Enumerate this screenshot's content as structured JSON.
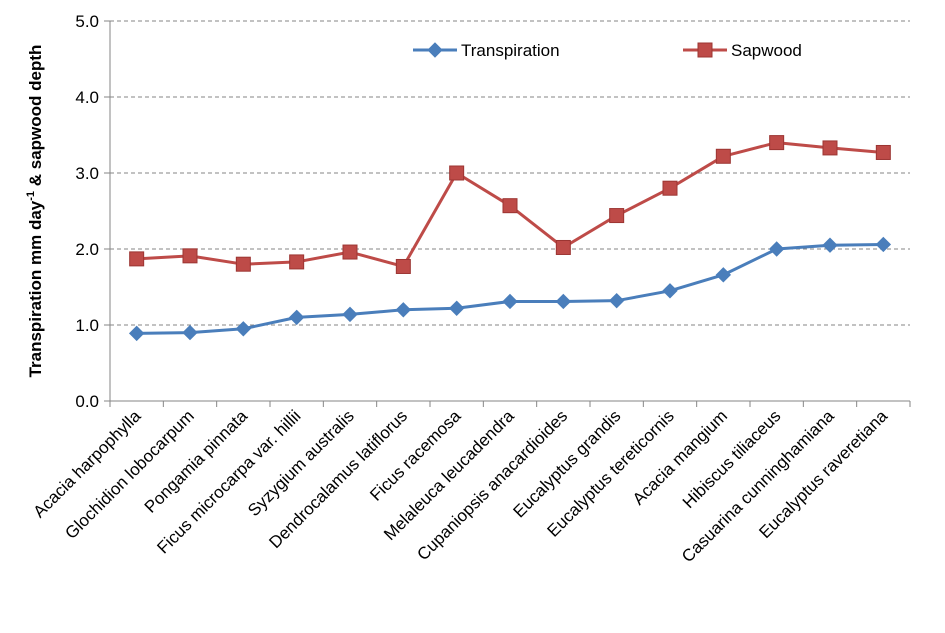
{
  "chart_data": {
    "type": "line",
    "title": "",
    "xlabel": "",
    "ylabel": {
      "main": "Transpiration  mm day",
      "superscript": "-1",
      "tail": " & sapwood depth"
    },
    "ylim": [
      0,
      5
    ],
    "yticks": [
      "0.0",
      "1.0",
      "2.0",
      "3.0",
      "4.0",
      "5.0"
    ],
    "ytick_values": [
      0,
      1,
      2,
      3,
      4,
      5
    ],
    "grid": "horizontal-dashed",
    "legend_position": "top",
    "categories": [
      "Acacia harpophylla",
      "Glochidion lobocarpum",
      "Pongamia pinnata",
      "Ficus microcarpa var. hillii",
      "Syzygium australis",
      "Dendrocalamus latiflorus",
      "Ficus racemosa",
      "Melaleuca leucadendra",
      "Cupaniopsis anacardioides",
      "Eucalyptus grandis",
      "Eucalyptus tereticornis",
      "Acacia mangium",
      "Hibiscus tiliaceus",
      "Casuarina cunninghamiana",
      "Eucalyptus raveretiana"
    ],
    "series": [
      {
        "name": "Transpiration",
        "color": "#4a7ebb",
        "marker": "diamond",
        "values": [
          0.89,
          0.9,
          0.95,
          1.1,
          1.14,
          1.2,
          1.22,
          1.31,
          1.31,
          1.32,
          1.45,
          1.66,
          2.0,
          2.05,
          2.06
        ]
      },
      {
        "name": "Sapwood",
        "color": "#be4b48",
        "marker": "square",
        "values": [
          1.87,
          1.91,
          1.8,
          1.83,
          1.96,
          1.77,
          3.0,
          2.57,
          2.02,
          2.44,
          2.8,
          3.22,
          3.4,
          3.33,
          3.27
        ]
      }
    ]
  }
}
